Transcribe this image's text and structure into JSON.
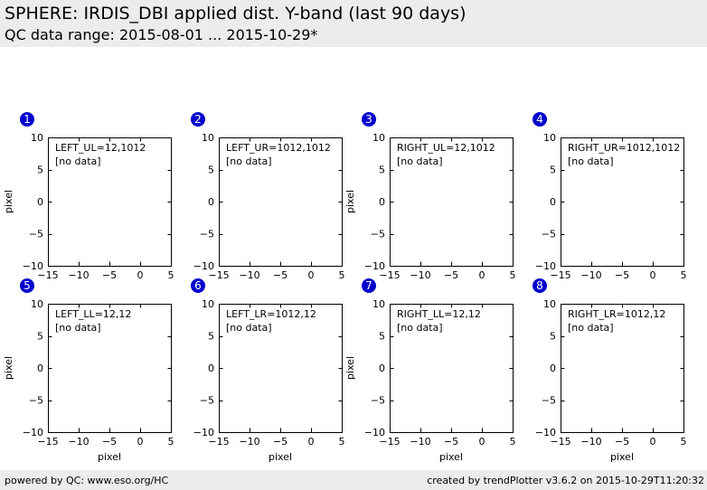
{
  "header": {
    "title": "SPHERE: IRDIS_DBI applied dist. Y-band (last 90 days)",
    "subtitle": "QC data range: 2015-08-01 ... 2015-10-29*"
  },
  "footer": {
    "left": "powered by QC: www.eso.org/HC",
    "right": "created by trendPlotter v3.6.2 on 2015-10-29T11:20:32"
  },
  "colors": {
    "badge": "#0000cc",
    "frame": "#000000"
  },
  "chart_data": [
    {
      "type": "scatter",
      "badge": "1",
      "annotation": "LEFT_UL=12,1012",
      "no_data": "[no data]",
      "xlabel": "",
      "ylabel": "pixel",
      "xlim": [
        -15,
        5
      ],
      "ylim": [
        -10,
        10
      ],
      "xticks": [
        -15,
        -10,
        -5,
        0,
        5
      ],
      "yticks": [
        10,
        5,
        0,
        -5,
        -10
      ],
      "series": []
    },
    {
      "type": "scatter",
      "badge": "2",
      "annotation": "LEFT_UR=1012,1012",
      "no_data": "[no data]",
      "xlabel": "",
      "ylabel": "",
      "xlim": [
        -15,
        5
      ],
      "ylim": [
        -10,
        10
      ],
      "xticks": [
        -15,
        -10,
        -5,
        0,
        5
      ],
      "yticks": [
        10,
        5,
        0,
        -5,
        -10
      ],
      "series": []
    },
    {
      "type": "scatter",
      "badge": "3",
      "annotation": "RIGHT_UL=12,1012",
      "no_data": "[no data]",
      "xlabel": "",
      "ylabel": "pixel",
      "xlim": [
        -15,
        5
      ],
      "ylim": [
        -10,
        10
      ],
      "xticks": [
        -15,
        -10,
        -5,
        0,
        5
      ],
      "yticks": [
        10,
        5,
        0,
        -5,
        -10
      ],
      "series": []
    },
    {
      "type": "scatter",
      "badge": "4",
      "annotation": "RIGHT_UR=1012,1012",
      "no_data": "[no data]",
      "xlabel": "",
      "ylabel": "",
      "xlim": [
        -15,
        5
      ],
      "ylim": [
        -10,
        10
      ],
      "xticks": [
        -15,
        -10,
        -5,
        0,
        5
      ],
      "yticks": [
        10,
        5,
        0,
        -5,
        -10
      ],
      "series": []
    },
    {
      "type": "scatter",
      "badge": "5",
      "annotation": "LEFT_LL=12,12",
      "no_data": "[no data]",
      "xlabel": "pixel",
      "ylabel": "pixel",
      "xlim": [
        -15,
        5
      ],
      "ylim": [
        -10,
        10
      ],
      "xticks": [
        -15,
        -10,
        -5,
        0,
        5
      ],
      "yticks": [
        10,
        5,
        0,
        -5,
        -10
      ],
      "series": []
    },
    {
      "type": "scatter",
      "badge": "6",
      "annotation": "LEFT_LR=1012,12",
      "no_data": "[no data]",
      "xlabel": "pixel",
      "ylabel": "",
      "xlim": [
        -15,
        5
      ],
      "ylim": [
        -10,
        10
      ],
      "xticks": [
        -15,
        -10,
        -5,
        0,
        5
      ],
      "yticks": [
        10,
        5,
        0,
        -5,
        -10
      ],
      "series": []
    },
    {
      "type": "scatter",
      "badge": "7",
      "annotation": "RIGHT_LL=12,12",
      "no_data": "[no data]",
      "xlabel": "pixel",
      "ylabel": "pixel",
      "xlim": [
        -15,
        5
      ],
      "ylim": [
        -10,
        10
      ],
      "xticks": [
        -15,
        -10,
        -5,
        0,
        5
      ],
      "yticks": [
        10,
        5,
        0,
        -5,
        -10
      ],
      "series": []
    },
    {
      "type": "scatter",
      "badge": "8",
      "annotation": "RIGHT_LR=1012,12",
      "no_data": "[no data]",
      "xlabel": "pixel",
      "ylabel": "",
      "xlim": [
        -15,
        5
      ],
      "ylim": [
        -10,
        10
      ],
      "xticks": [
        -15,
        -10,
        -5,
        0,
        5
      ],
      "yticks": [
        10,
        5,
        0,
        -5,
        -10
      ],
      "series": []
    }
  ]
}
